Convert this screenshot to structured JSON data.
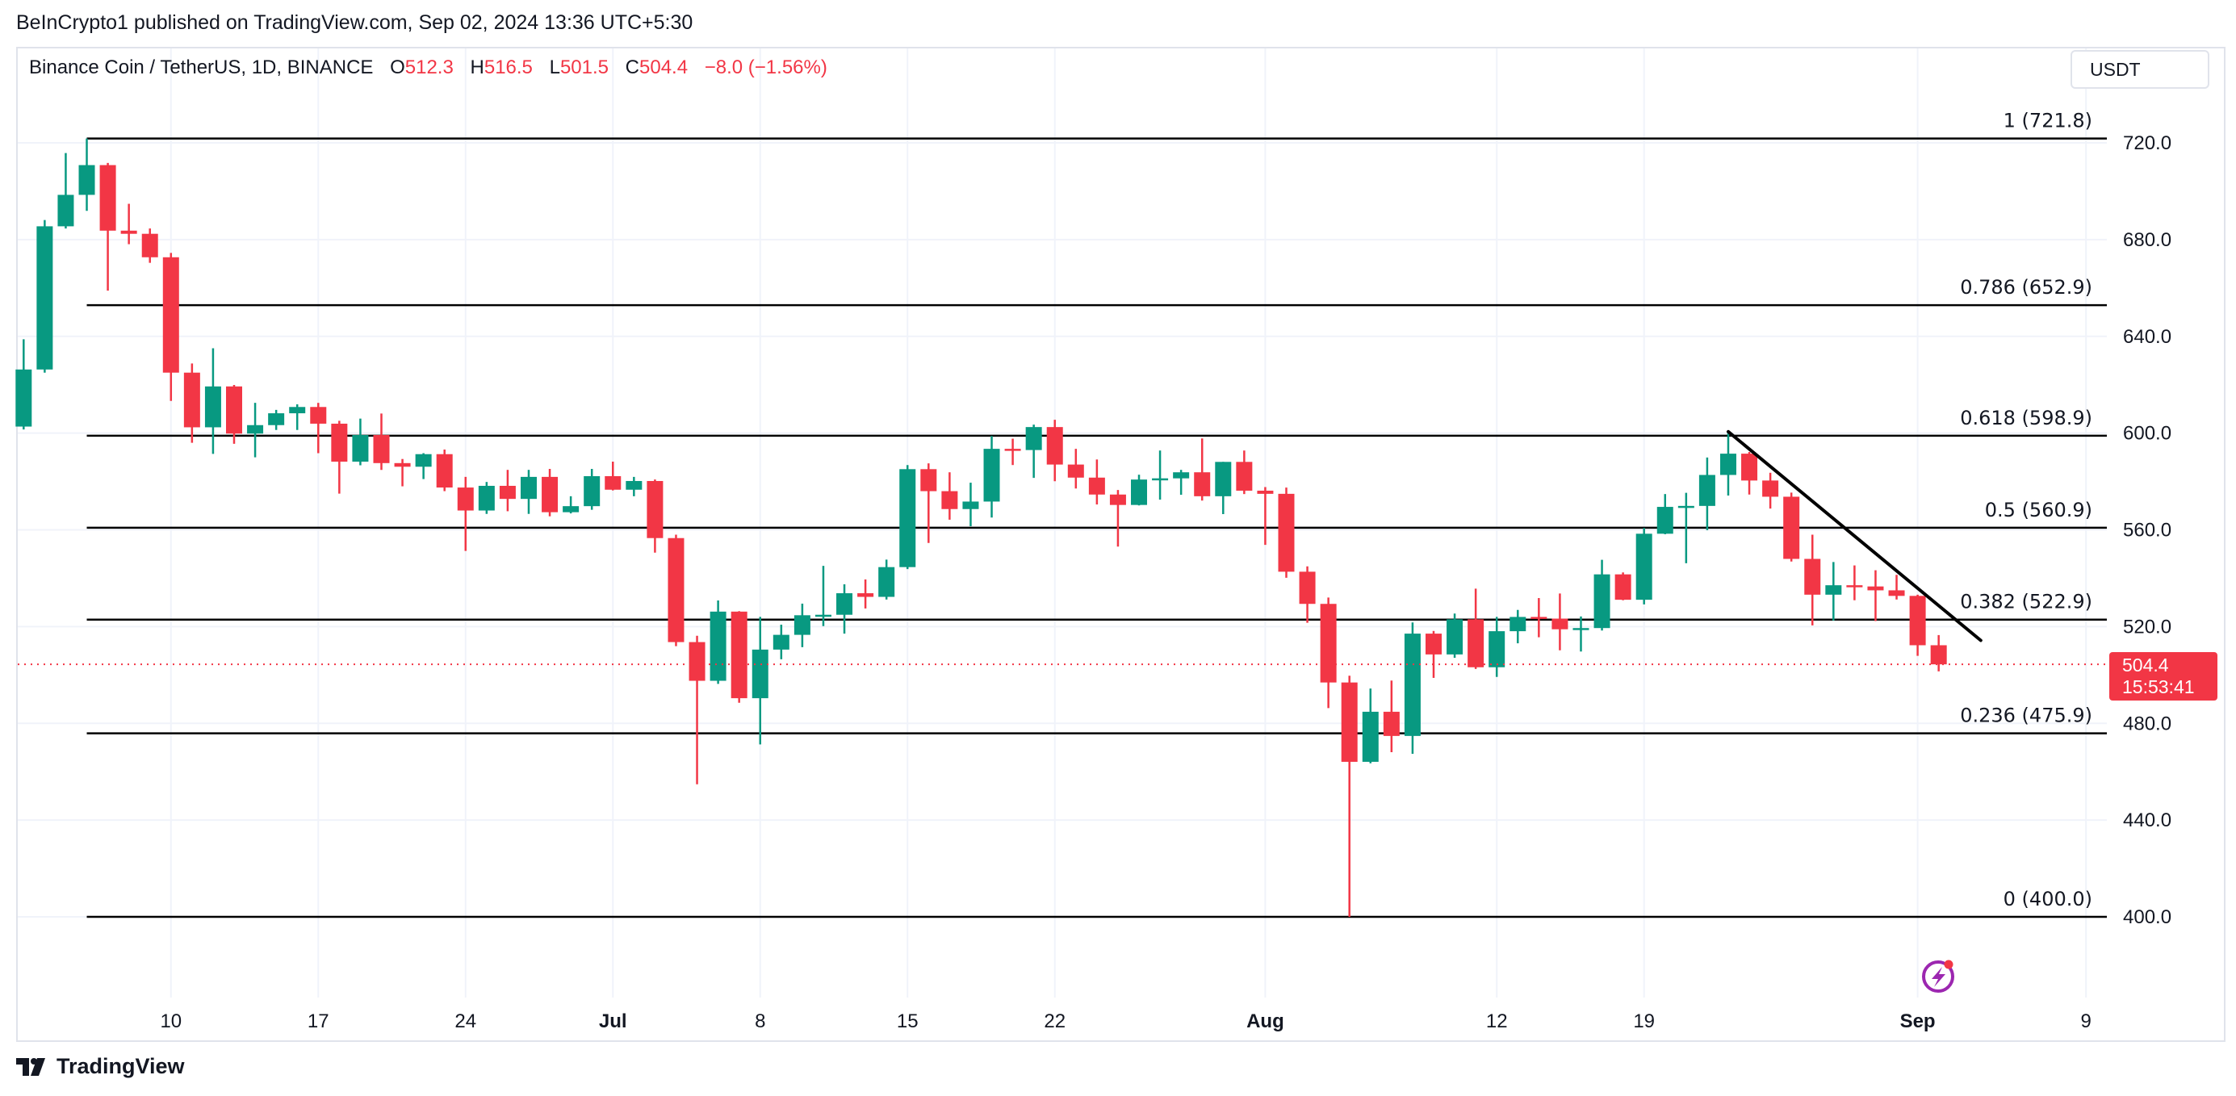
{
  "header": {
    "published": "BeInCrypto1 published on TradingView.com, Sep 02, 2024 13:36 UTC+5:30"
  },
  "legend": {
    "symbol": "Binance Coin / TetherUS, 1D, BINANCE",
    "o_label": "O",
    "o_value": "512.3",
    "h_label": "H",
    "h_value": "516.5",
    "l_label": "L",
    "l_value": "501.5",
    "c_label": "C",
    "c_value": "504.4",
    "change": "−8.0 (−1.56%)"
  },
  "currency_button": "USDT",
  "last_price": {
    "price": "504.4",
    "countdown": "15:53:41"
  },
  "footer": {
    "logo_text": "TradingView"
  },
  "colors": {
    "up": "#089981",
    "down": "#f23645",
    "fib": "#000000",
    "trendline": "#000000",
    "grid": "#f0f3fa"
  },
  "chart_data": {
    "type": "candlestick",
    "title": "Binance Coin / TetherUS, 1D, BINANCE",
    "ylim": [
      350,
      760
    ],
    "grid": true,
    "candle_fields": [
      "date",
      "open",
      "high",
      "low",
      "close"
    ],
    "candles": [
      [
        "2024-06-03",
        602.7,
        638.8,
        601.5,
        626.3
      ],
      [
        "2024-06-04",
        626.3,
        688.1,
        625.0,
        685.5
      ],
      [
        "2024-06-05",
        685.5,
        715.8,
        684.6,
        698.5
      ],
      [
        "2024-06-06",
        698.5,
        721.8,
        691.9,
        710.8
      ],
      [
        "2024-06-07",
        710.8,
        711.7,
        658.9,
        683.7
      ],
      [
        "2024-06-08",
        683.7,
        694.8,
        678.1,
        682.4
      ],
      [
        "2024-06-09",
        682.4,
        684.6,
        670.4,
        672.7
      ],
      [
        "2024-06-10",
        672.7,
        674.5,
        613.3,
        625.0
      ],
      [
        "2024-06-11",
        625.0,
        628.8,
        596.0,
        602.4
      ],
      [
        "2024-06-12",
        602.4,
        635.1,
        591.4,
        619.3
      ],
      [
        "2024-06-13",
        619.3,
        619.9,
        595.6,
        599.8
      ],
      [
        "2024-06-14",
        599.8,
        612.5,
        590.0,
        603.3
      ],
      [
        "2024-06-15",
        603.3,
        609.6,
        601.3,
        608.2
      ],
      [
        "2024-06-16",
        608.2,
        611.9,
        601.3,
        610.8
      ],
      [
        "2024-06-17",
        610.8,
        612.5,
        591.7,
        603.9
      ],
      [
        "2024-06-18",
        603.9,
        605.1,
        575.0,
        588.2
      ],
      [
        "2024-06-19",
        588.2,
        606.0,
        586.7,
        599.2
      ],
      [
        "2024-06-20",
        599.2,
        608.1,
        584.8,
        587.6
      ],
      [
        "2024-06-21",
        587.6,
        589.3,
        578.0,
        586.1
      ],
      [
        "2024-06-22",
        586.1,
        591.7,
        581.0,
        591.3
      ],
      [
        "2024-06-23",
        591.3,
        593.2,
        576.0,
        577.5
      ],
      [
        "2024-06-24",
        577.5,
        581.9,
        551.3,
        568.0
      ],
      [
        "2024-06-25",
        568.0,
        579.8,
        566.6,
        578.2
      ],
      [
        "2024-06-26",
        578.2,
        584.8,
        567.7,
        572.8
      ],
      [
        "2024-06-27",
        572.8,
        584.8,
        566.6,
        581.9
      ],
      [
        "2024-06-28",
        581.9,
        585.2,
        565.6,
        567.3
      ],
      [
        "2024-06-29",
        567.3,
        573.9,
        566.8,
        569.8
      ],
      [
        "2024-06-30",
        569.8,
        585.2,
        568.3,
        582.2
      ],
      [
        "2024-07-01",
        582.2,
        588.2,
        576.3,
        576.6
      ],
      [
        "2024-07-02",
        576.6,
        581.9,
        573.9,
        580.2
      ],
      [
        "2024-07-03",
        580.2,
        580.8,
        550.6,
        556.6
      ],
      [
        "2024-07-04",
        556.6,
        558.0,
        511.9,
        513.6
      ],
      [
        "2024-07-05",
        513.6,
        516.2,
        454.8,
        497.6
      ],
      [
        "2024-07-06",
        497.6,
        530.8,
        496.3,
        526.2
      ],
      [
        "2024-07-07",
        526.2,
        526.4,
        488.5,
        490.4
      ],
      [
        "2024-07-08",
        490.4,
        524.0,
        471.3,
        510.5
      ],
      [
        "2024-07-09",
        510.5,
        520.8,
        506.5,
        516.6
      ],
      [
        "2024-07-10",
        516.6,
        529.5,
        511.5,
        524.7
      ],
      [
        "2024-07-11",
        524.7,
        545.1,
        520.2,
        524.9
      ],
      [
        "2024-07-12",
        524.9,
        537.5,
        517.1,
        533.8
      ],
      [
        "2024-07-13",
        533.8,
        539.5,
        527.5,
        532.3
      ],
      [
        "2024-07-14",
        532.3,
        547.7,
        531.2,
        544.6
      ],
      [
        "2024-07-15",
        544.6,
        586.8,
        543.8,
        585.1
      ],
      [
        "2024-07-16",
        585.1,
        587.5,
        554.6,
        576.0
      ],
      [
        "2024-07-17",
        576.0,
        583.8,
        564.2,
        568.6
      ],
      [
        "2024-07-18",
        568.6,
        579.5,
        561.5,
        571.7
      ],
      [
        "2024-07-19",
        571.7,
        598.8,
        565.1,
        593.5
      ],
      [
        "2024-07-20",
        593.5,
        597.7,
        586.8,
        593.0
      ],
      [
        "2024-07-21",
        593.0,
        603.5,
        581.5,
        602.5
      ],
      [
        "2024-07-22",
        602.5,
        605.5,
        580.1,
        587.0
      ],
      [
        "2024-07-23",
        587.0,
        593.5,
        577.1,
        581.6
      ],
      [
        "2024-07-24",
        581.6,
        589.1,
        570.5,
        574.6
      ],
      [
        "2024-07-25",
        574.6,
        576.5,
        553.1,
        570.3
      ],
      [
        "2024-07-26",
        570.3,
        582.8,
        570.1,
        580.8
      ],
      [
        "2024-07-27",
        580.8,
        592.8,
        572.5,
        581.3
      ],
      [
        "2024-07-28",
        581.3,
        584.8,
        574.5,
        583.8
      ],
      [
        "2024-07-29",
        583.8,
        597.8,
        572.1,
        573.9
      ],
      [
        "2024-07-30",
        573.9,
        588.1,
        566.5,
        588.1
      ],
      [
        "2024-07-31",
        588.1,
        592.8,
        574.8,
        576.2
      ],
      [
        "2024-08-01",
        576.2,
        577.7,
        553.8,
        574.9
      ],
      [
        "2024-08-02",
        574.9,
        577.5,
        540.2,
        542.7
      ],
      [
        "2024-08-03",
        542.7,
        544.9,
        521.6,
        529.4
      ],
      [
        "2024-08-04",
        529.4,
        532.0,
        486.3,
        496.9
      ],
      [
        "2024-08-05",
        496.9,
        499.7,
        400.0,
        464.1
      ],
      [
        "2024-08-06",
        464.1,
        494.4,
        463.5,
        484.8
      ],
      [
        "2024-08-07",
        484.8,
        497.7,
        468.1,
        474.8
      ],
      [
        "2024-08-08",
        474.8,
        521.7,
        467.4,
        517.1
      ],
      [
        "2024-08-09",
        517.1,
        518.2,
        498.8,
        508.5
      ],
      [
        "2024-08-10",
        508.5,
        525.4,
        507.1,
        523.0
      ],
      [
        "2024-08-11",
        523.0,
        535.7,
        502.5,
        503.2
      ],
      [
        "2024-08-12",
        503.2,
        524.0,
        499.2,
        518.1
      ],
      [
        "2024-08-13",
        518.1,
        526.9,
        513.1,
        524.0
      ],
      [
        "2024-08-14",
        524.0,
        531.8,
        515.6,
        523.3
      ],
      [
        "2024-08-15",
        523.3,
        533.7,
        510.2,
        518.9
      ],
      [
        "2024-08-16",
        518.9,
        524.2,
        509.7,
        519.4
      ],
      [
        "2024-08-17",
        519.4,
        547.6,
        518.4,
        541.6
      ],
      [
        "2024-08-18",
        541.6,
        542.4,
        530.9,
        531.1
      ],
      [
        "2024-08-19",
        531.1,
        560.8,
        529.2,
        558.4
      ],
      [
        "2024-08-20",
        558.4,
        574.8,
        558.2,
        569.5
      ],
      [
        "2024-08-21",
        569.5,
        575.3,
        546.2,
        569.9
      ],
      [
        "2024-08-22",
        569.9,
        589.9,
        559.9,
        582.7
      ],
      [
        "2024-08-23",
        582.7,
        600.6,
        574.2,
        591.5
      ],
      [
        "2024-08-24",
        591.5,
        592.2,
        574.6,
        580.4
      ],
      [
        "2024-08-25",
        580.4,
        583.6,
        568.8,
        573.7
      ],
      [
        "2024-08-26",
        573.7,
        575.4,
        546.9,
        548.0
      ],
      [
        "2024-08-27",
        548.0,
        558.0,
        520.5,
        533.2
      ],
      [
        "2024-08-28",
        533.2,
        546.7,
        522.5,
        537.1
      ],
      [
        "2024-08-29",
        537.1,
        545.3,
        530.9,
        536.6
      ],
      [
        "2024-08-30",
        536.6,
        543.3,
        522.3,
        535.0
      ],
      [
        "2024-08-31",
        535.0,
        541.4,
        531.2,
        532.7
      ],
      [
        "2024-09-01",
        532.7,
        533.2,
        507.9,
        512.3
      ],
      [
        "2024-09-02",
        512.3,
        516.5,
        501.5,
        504.4
      ]
    ],
    "y_ticks": [
      "400.0",
      "440.0",
      "480.0",
      "520.0",
      "560.0",
      "600.0",
      "640.0",
      "680.0",
      "720.0"
    ],
    "x_ticks": [
      {
        "label": "10",
        "date": "2024-06-10"
      },
      {
        "label": "17",
        "date": "2024-06-17"
      },
      {
        "label": "24",
        "date": "2024-06-24"
      },
      {
        "label": "Jul",
        "date": "2024-07-01"
      },
      {
        "label": "8",
        "date": "2024-07-08"
      },
      {
        "label": "15",
        "date": "2024-07-15"
      },
      {
        "label": "22",
        "date": "2024-07-22"
      },
      {
        "label": "Aug",
        "date": "2024-08-01"
      },
      {
        "label": "12",
        "date": "2024-08-12"
      },
      {
        "label": "19",
        "date": "2024-08-19"
      },
      {
        "label": "Sep",
        "date": "2024-09-01"
      },
      {
        "label": "9",
        "date": "2024-09-09"
      }
    ],
    "fib_start_date": "2024-06-06",
    "fib_levels": [
      {
        "label": "1 (721.8)",
        "value": 721.8
      },
      {
        "label": "0.786 (652.9)",
        "value": 652.9
      },
      {
        "label": "0.618 (598.9)",
        "value": 598.9
      },
      {
        "label": "0.5 (560.9)",
        "value": 560.9
      },
      {
        "label": "0.382 (522.9)",
        "value": 522.9
      },
      {
        "label": "0.236 (475.9)",
        "value": 475.9
      },
      {
        "label": "0 (400.0)",
        "value": 400.0
      }
    ],
    "trendline": {
      "from": {
        "date": "2024-08-23",
        "price": 600.6
      },
      "to": {
        "date": "2024-09-04",
        "price": 514.3
      }
    },
    "last_price_line": 504.4
  }
}
